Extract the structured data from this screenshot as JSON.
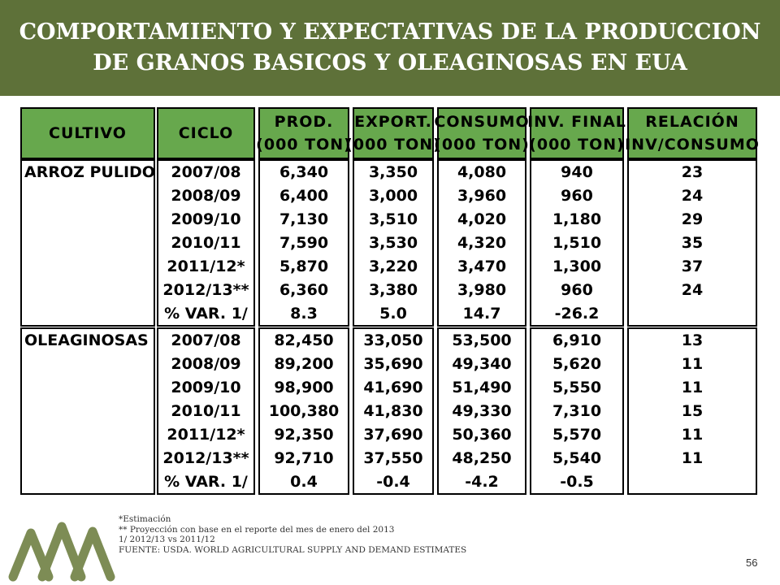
{
  "title": {
    "line1": "COMPORTAMIENTO Y EXPECTATIVAS DE LA PRODUCCION",
    "line2": "DE GRANOS BASICOS Y OLEAGINOSAS EN EUA"
  },
  "colors": {
    "title_band": "#5e7139",
    "header_green": "#67a84d",
    "logo": "#7d8c55"
  },
  "table": {
    "headers": [
      {
        "line1": "CULTIVO",
        "line2": ""
      },
      {
        "line1": "CICLO",
        "line2": ""
      },
      {
        "line1": "PROD.",
        "line2": "(000 TON)"
      },
      {
        "line1": "EXPORT.",
        "line2": "(000 TON)"
      },
      {
        "line1": "CONSUMO",
        "line2": "(000 TON)"
      },
      {
        "line1": "INV. FINAL",
        "line2": "(000 TON)"
      },
      {
        "line1": "RELACIÓN",
        "line2": "INV/CONSUMO"
      }
    ],
    "blocks": [
      {
        "crop": "ARROZ PULIDO",
        "ciclo": [
          "2007/08",
          "2008/09",
          "2009/10",
          "2010/11",
          "2011/12*",
          "2012/13**",
          "% VAR. 1/"
        ],
        "prod": [
          "6,340",
          "6,400",
          "7,130",
          "7,590",
          "5,870",
          "6,360",
          "8.3"
        ],
        "export": [
          "3,350",
          "3,000",
          "3,510",
          "3,530",
          "3,220",
          "3,380",
          "5.0"
        ],
        "consumo": [
          "4,080",
          "3,960",
          "4,020",
          "4,320",
          "3,470",
          "3,980",
          "14.7"
        ],
        "inv_final": [
          "940",
          "960",
          "1,180",
          "1,510",
          "1,300",
          "960",
          "-26.2"
        ],
        "relacion": [
          "23",
          "24",
          "29",
          "35",
          "37",
          "24",
          ""
        ]
      },
      {
        "crop": "OLEAGINOSAS",
        "ciclo": [
          "2007/08",
          "2008/09",
          "2009/10",
          "2010/11",
          "2011/12*",
          "2012/13**",
          "% VAR. 1/"
        ],
        "prod": [
          "82,450",
          "89,200",
          "98,900",
          "100,380",
          "92,350",
          "92,710",
          "0.4"
        ],
        "export": [
          "33,050",
          "35,690",
          "41,690",
          "41,830",
          "37,690",
          "37,550",
          "-0.4"
        ],
        "consumo": [
          "53,500",
          "49,340",
          "51,490",
          "49,330",
          "50,360",
          "48,250",
          "-4.2"
        ],
        "inv_final": [
          "6,910",
          "5,620",
          "5,550",
          "7,310",
          "5,570",
          "5,540",
          "-0.5"
        ],
        "relacion": [
          "13",
          "11",
          "11",
          "15",
          "11",
          "11",
          ""
        ]
      }
    ]
  },
  "footnotes": [
    "*Estimación",
    "** Proyección con base en el reporte  del mes de enero del 2013",
    "1/ 2012/13 vs 2011/12",
    "FUENTE: USDA. WORLD AGRICULTURAL SUPPLY AND DEMAND ESTIMATES"
  ],
  "page_number": "56"
}
